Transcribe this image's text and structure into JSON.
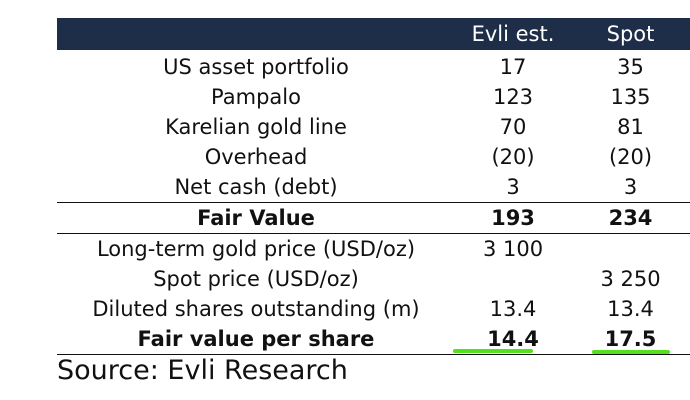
{
  "table": {
    "header": {
      "label": "",
      "est": "Evli est.",
      "spot": "Spot"
    },
    "rows": [
      {
        "label": "US asset portfolio",
        "est": "17",
        "spot": "35"
      },
      {
        "label": "Pampalo",
        "est": "123",
        "spot": "135"
      },
      {
        "label": "Karelian gold line",
        "est": "70",
        "spot": "81"
      },
      {
        "label": "Overhead",
        "est": "(20)",
        "spot": "(20)"
      },
      {
        "label": "Net cash (debt)",
        "est": "3",
        "spot": "3"
      },
      {
        "label": "Fair Value",
        "est": "193",
        "spot": "234"
      },
      {
        "label": "Long-term gold price (USD/oz)",
        "est": "3 100",
        "spot": ""
      },
      {
        "label": "Spot price (USD/oz)",
        "est": "",
        "spot": "3 250"
      },
      {
        "label": "Diluted shares outstanding (m)",
        "est": "13.4",
        "spot": "13.4"
      },
      {
        "label": "Fair value per share",
        "est": "14.4",
        "spot": "17.5"
      }
    ]
  },
  "source": "Source: Evli Research",
  "colors": {
    "header_bg": "#1e2d48",
    "header_text": "#ffffff",
    "highlight": "#52e01f"
  }
}
